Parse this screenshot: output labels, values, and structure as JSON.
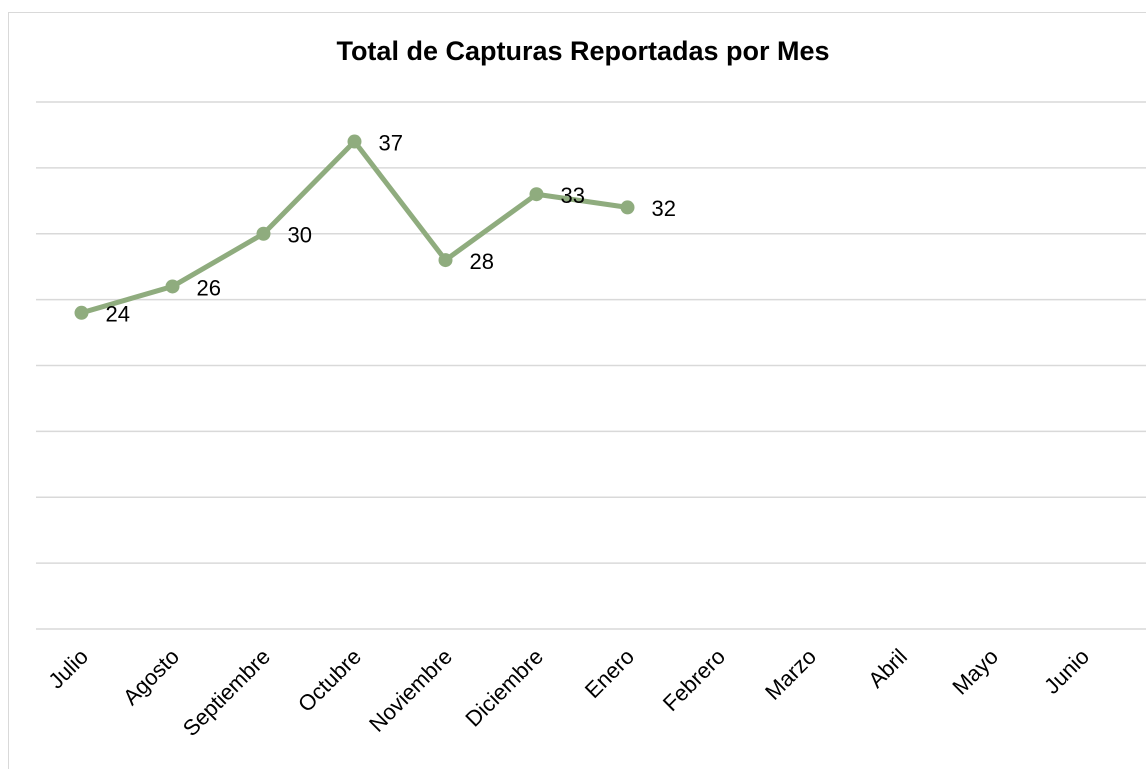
{
  "chart_data": {
    "type": "line",
    "title": "Total de Capturas Reportadas por Mes",
    "categories": [
      "Julio",
      "Agosto",
      "Septiembre",
      "Octubre",
      "Noviembre",
      "Diciembre",
      "Enero",
      "Febrero",
      "Marzo",
      "Abril",
      "Mayo",
      "Junio"
    ],
    "values": [
      24,
      26,
      30,
      37,
      28,
      33,
      32,
      null,
      null,
      null,
      null,
      null
    ],
    "color": "#8fac7e",
    "ylim": [
      0,
      40
    ],
    "yticks": [
      0,
      5,
      10,
      15,
      20,
      25,
      30,
      35,
      40
    ],
    "grid": true
  }
}
